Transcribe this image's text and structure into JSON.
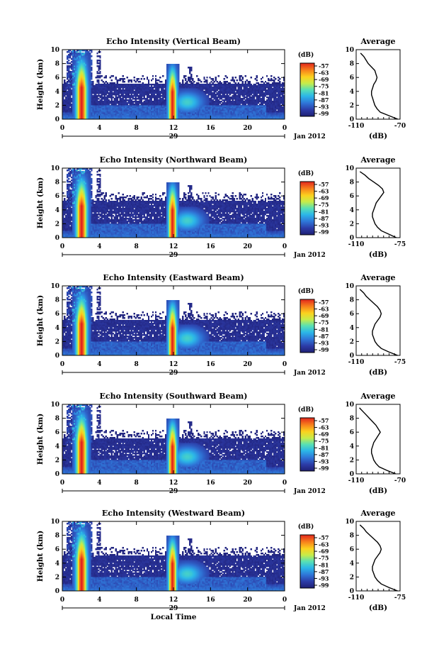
{
  "chart_data": [
    {
      "type": "heatmap",
      "title": "Echo Intensity (Vertical Beam)",
      "ylabel": "Height (km)",
      "xlabel": "",
      "date_label": "29",
      "month_label": "Jan 2012",
      "x_ticks": [
        "0",
        "4",
        "8",
        "12",
        "16",
        "20",
        "0"
      ],
      "y_ticks": [
        "0",
        "2",
        "4",
        "6",
        "8",
        "10"
      ],
      "xlim": [
        0,
        24
      ],
      "ylim": [
        0,
        10
      ],
      "colorbar": {
        "unit": "(dB)",
        "ticks": [
          "-57",
          "-63",
          "-69",
          "-75",
          "-81",
          "-87",
          "-93",
          "-99"
        ]
      },
      "features": {
        "storm_cells": [
          {
            "start_h": 1.3,
            "end_h": 3.0,
            "top_km": 9.6
          },
          {
            "start_h": 11.3,
            "end_h": 12.6,
            "top_km": 8.0
          }
        ],
        "stratiform_top_km": 5.2
      },
      "profile": {
        "title": "Average",
        "xlabel": "(dB)",
        "x_ticks": [
          "-110",
          "-70"
        ],
        "xlim": [
          -110,
          -70
        ],
        "height_km": [
          0,
          0.5,
          1,
          1.5,
          2,
          2.5,
          3,
          3.5,
          4,
          4.5,
          5,
          5.5,
          6,
          6.5,
          7,
          7.5,
          8,
          8.5,
          9,
          9.5
        ],
        "db": [
          -72,
          -80,
          -88,
          -91,
          -93,
          -94,
          -95,
          -96,
          -96,
          -95,
          -94,
          -92,
          -91,
          -92,
          -93,
          -96,
          -99,
          -101,
          -103,
          -106
        ]
      }
    },
    {
      "type": "heatmap",
      "title": "Echo Intensity (Northward Beam)",
      "ylabel": "Height (km)",
      "xlabel": "",
      "date_label": "29",
      "month_label": "Jan 2012",
      "x_ticks": [
        "0",
        "4",
        "8",
        "12",
        "16",
        "20",
        "0"
      ],
      "y_ticks": [
        "0",
        "2",
        "4",
        "6",
        "8",
        "10"
      ],
      "xlim": [
        0,
        24
      ],
      "ylim": [
        0,
        10
      ],
      "colorbar": {
        "unit": "(dB)",
        "ticks": [
          "-57",
          "-63",
          "-69",
          "-75",
          "-81",
          "-87",
          "-93",
          "-99"
        ]
      },
      "features": {
        "storm_cells": [
          {
            "start_h": 1.3,
            "end_h": 3.0,
            "top_km": 9.6
          },
          {
            "start_h": 11.3,
            "end_h": 12.6,
            "top_km": 8.0
          }
        ],
        "stratiform_top_km": 5.4
      },
      "profile": {
        "title": "Average",
        "xlabel": "(dB)",
        "x_ticks": [
          "-110",
          "-75"
        ],
        "xlim": [
          -110,
          -75
        ],
        "height_km": [
          0,
          0.5,
          1,
          1.5,
          2,
          2.5,
          3,
          3.5,
          4,
          4.5,
          5,
          5.5,
          6,
          6.5,
          7,
          7.5,
          8,
          8.5,
          9,
          9.5
        ],
        "db": [
          -78,
          -84,
          -90,
          -93,
          -95,
          -96,
          -97,
          -97,
          -96,
          -95,
          -94,
          -92,
          -90,
          -88,
          -89,
          -92,
          -96,
          -100,
          -103,
          -107
        ]
      }
    },
    {
      "type": "heatmap",
      "title": "Echo Intensity (Eastward Beam)",
      "ylabel": "Height (km)",
      "xlabel": "",
      "date_label": "29",
      "month_label": "Jan 2012",
      "x_ticks": [
        "0",
        "4",
        "8",
        "12",
        "16",
        "20",
        "0"
      ],
      "y_ticks": [
        "0",
        "2",
        "4",
        "6",
        "8",
        "10"
      ],
      "xlim": [
        0,
        24
      ],
      "ylim": [
        0,
        10
      ],
      "colorbar": {
        "unit": "(dB)",
        "ticks": [
          "-57",
          "-63",
          "-69",
          "-75",
          "-81",
          "-87",
          "-93",
          "-99"
        ]
      },
      "features": {
        "storm_cells": [
          {
            "start_h": 1.3,
            "end_h": 3.0,
            "top_km": 9.6
          },
          {
            "start_h": 11.3,
            "end_h": 12.6,
            "top_km": 8.0
          }
        ],
        "stratiform_top_km": 5.2
      },
      "profile": {
        "title": "Average",
        "xlabel": "(dB)",
        "x_ticks": [
          "-110",
          "-75"
        ],
        "xlim": [
          -110,
          -75
        ],
        "height_km": [
          0,
          0.5,
          1,
          1.5,
          2,
          2.5,
          3,
          3.5,
          4,
          4.5,
          5,
          5.5,
          6,
          6.5,
          7,
          7.5,
          8,
          8.5,
          9,
          9.5
        ],
        "db": [
          -77,
          -84,
          -90,
          -93,
          -95,
          -96,
          -97,
          -97,
          -96,
          -95,
          -93,
          -91,
          -90,
          -91,
          -93,
          -96,
          -99,
          -102,
          -104,
          -107
        ]
      }
    },
    {
      "type": "heatmap",
      "title": "Echo Intensity (Southward Beam)",
      "ylabel": "Height (km)",
      "xlabel": "",
      "date_label": "29",
      "month_label": "Jan 2012",
      "x_ticks": [
        "0",
        "4",
        "8",
        "12",
        "16",
        "20",
        "0"
      ],
      "y_ticks": [
        "0",
        "2",
        "4",
        "6",
        "8",
        "10"
      ],
      "xlim": [
        0,
        24
      ],
      "ylim": [
        0,
        10
      ],
      "colorbar": {
        "unit": "(dB)",
        "ticks": [
          "-57",
          "-63",
          "-69",
          "-75",
          "-81",
          "-87",
          "-93",
          "-99"
        ]
      },
      "features": {
        "storm_cells": [
          {
            "start_h": 1.3,
            "end_h": 3.0,
            "top_km": 9.6
          },
          {
            "start_h": 11.3,
            "end_h": 12.6,
            "top_km": 8.0
          }
        ],
        "stratiform_top_km": 5.2
      },
      "profile": {
        "title": "Average",
        "xlabel": "(dB)",
        "x_ticks": [
          "-110",
          "-70"
        ],
        "xlim": [
          -110,
          -70
        ],
        "height_km": [
          0,
          0.5,
          1,
          1.5,
          2,
          2.5,
          3,
          3.5,
          4,
          4.5,
          5,
          5.5,
          6,
          6.5,
          7,
          7.5,
          8,
          8.5,
          9,
          9.5
        ],
        "db": [
          -74,
          -82,
          -89,
          -92,
          -94,
          -95,
          -96,
          -96,
          -95,
          -94,
          -92,
          -90,
          -88,
          -90,
          -92,
          -95,
          -98,
          -101,
          -104,
          -107
        ]
      }
    },
    {
      "type": "heatmap",
      "title": "Echo Intensity (Westward Beam)",
      "ylabel": "Height (km)",
      "xlabel": "Local Time",
      "date_label": "29",
      "month_label": "Jan 2012",
      "x_ticks": [
        "0",
        "4",
        "8",
        "12",
        "16",
        "20",
        "0"
      ],
      "y_ticks": [
        "0",
        "2",
        "4",
        "6",
        "8",
        "10"
      ],
      "xlim": [
        0,
        24
      ],
      "ylim": [
        0,
        10
      ],
      "colorbar": {
        "unit": "(dB)",
        "ticks": [
          "-57",
          "-63",
          "-69",
          "-75",
          "-81",
          "-87",
          "-93",
          "-99"
        ]
      },
      "features": {
        "storm_cells": [
          {
            "start_h": 1.3,
            "end_h": 3.0,
            "top_km": 9.6
          },
          {
            "start_h": 11.3,
            "end_h": 12.6,
            "top_km": 8.0
          }
        ],
        "stratiform_top_km": 5.2
      },
      "profile": {
        "title": "Average",
        "xlabel": "(dB)",
        "x_ticks": [
          "-110",
          "-75"
        ],
        "xlim": [
          -110,
          -75
        ],
        "height_km": [
          0,
          0.5,
          1,
          1.5,
          2,
          2.5,
          3,
          3.5,
          4,
          4.5,
          5,
          5.5,
          6,
          6.5,
          7,
          7.5,
          8,
          8.5,
          9,
          9.5
        ],
        "db": [
          -77,
          -84,
          -90,
          -93,
          -95,
          -96,
          -97,
          -97,
          -96,
          -95,
          -93,
          -91,
          -90,
          -91,
          -93,
          -96,
          -99,
          -102,
          -104,
          -107
        ]
      }
    }
  ]
}
